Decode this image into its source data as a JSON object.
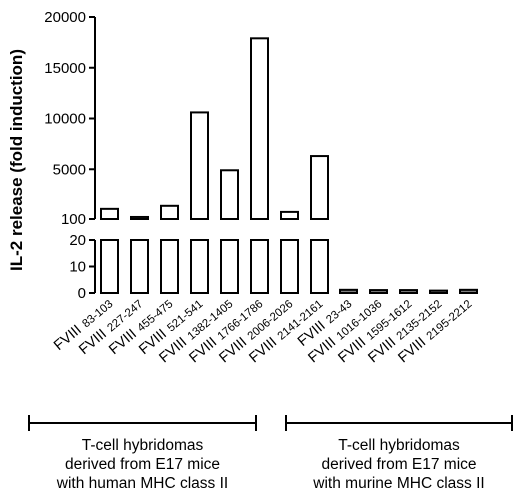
{
  "chart_data": {
    "type": "bar",
    "ylabel": "IL-2 release (fold induction)",
    "y_axis_break": true,
    "ylim_upper": [
      100,
      20000
    ],
    "ylim_lower": [
      0,
      20
    ],
    "yticks_upper": [
      {
        "v": 20000,
        "label": "20000"
      },
      {
        "v": 15000,
        "label": "15000"
      },
      {
        "v": 10000,
        "label": "10000"
      },
      {
        "v": 5000,
        "label": "5000"
      },
      {
        "v": 100,
        "label": "100"
      }
    ],
    "yticks_lower": [
      {
        "v": 20,
        "label": "20"
      },
      {
        "v": 10,
        "label": "10"
      },
      {
        "v": 0,
        "label": "0"
      }
    ],
    "groups": [
      {
        "label": "T-cell hybridomas derived from E17 mice with human MHC class II",
        "label_lines": [
          "T-cell hybridomas",
          "derived from E17 mice",
          "with human MHC class II"
        ],
        "bar_fill": "#ffffff",
        "categories": [
          {
            "prefix": "FVIII",
            "range": "83-103",
            "value": 1100
          },
          {
            "prefix": "FVIII",
            "range": "227-247",
            "value": 300
          },
          {
            "prefix": "FVIII",
            "range": "455-475",
            "value": 1400
          },
          {
            "prefix": "FVIII",
            "range": "521-541",
            "value": 10600
          },
          {
            "prefix": "FVIII",
            "range": "1382-1405",
            "value": 4900
          },
          {
            "prefix": "FVIII",
            "range": "1766-1786",
            "value": 17900
          },
          {
            "prefix": "FVIII",
            "range": "2006-2026",
            "value": 800
          },
          {
            "prefix": "FVIII",
            "range": "2141-2161",
            "value": 6300
          }
        ]
      },
      {
        "label": "T-cell hybridomas derived from E17 mice with murine MHC class II",
        "label_lines": [
          "T-cell hybridomas",
          "derived from E17 mice",
          "with murine MHC class II"
        ],
        "bar_fill": "#7f7f7f",
        "categories": [
          {
            "prefix": "FVIII",
            "range": "23-43",
            "value": 1.2
          },
          {
            "prefix": "FVIII",
            "range": "1016-1036",
            "value": 1.1
          },
          {
            "prefix": "FVIII",
            "range": "1595-1612",
            "value": 1.1
          },
          {
            "prefix": "FVIII",
            "range": "2135-2152",
            "value": 0.9
          },
          {
            "prefix": "FVIII",
            "range": "2195-2212",
            "value": 1.2
          }
        ]
      }
    ]
  }
}
